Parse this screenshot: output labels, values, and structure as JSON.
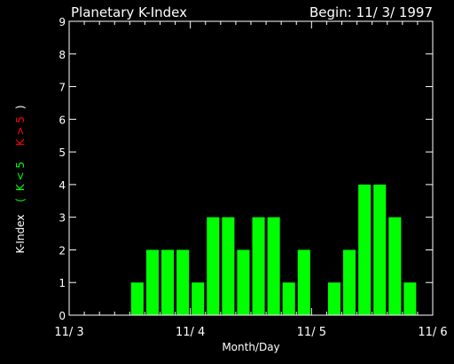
{
  "chart_data": {
    "type": "bar",
    "title": "Planetary K-Index",
    "begin_label": "Begin: 11/ 3/ 1997",
    "xlabel": "Month/Day",
    "ylabel_prefix": "K-Index",
    "ylabel_open": "(",
    "ylabel_green": "K < 5",
    "ylabel_red": "K > 5",
    "ylabel_close": ")",
    "ylim": [
      0,
      9
    ],
    "yticks": [
      "0",
      "1",
      "2",
      "3",
      "4",
      "5",
      "6",
      "7",
      "8",
      "9"
    ],
    "xticks": [
      "11/ 3",
      "11/ 4",
      "11/ 5",
      "11/ 6"
    ],
    "bins_per_day": 8,
    "values": [
      0,
      0,
      0,
      0,
      1,
      2,
      2,
      2,
      1,
      3,
      3,
      2,
      3,
      3,
      1,
      2,
      0,
      1,
      2,
      4,
      4,
      3,
      1,
      0
    ],
    "threshold": 5,
    "colors": {
      "background": "#000000",
      "axes": "#ffffff",
      "bar_low": "#00ff00",
      "bar_high": "#ff0000"
    }
  }
}
